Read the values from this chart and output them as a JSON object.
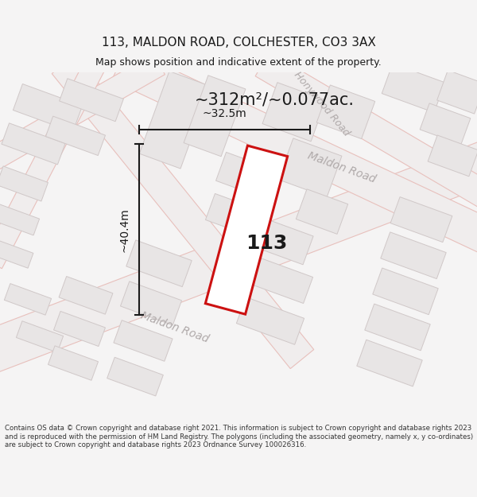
{
  "title": "113, MALDON ROAD, COLCHESTER, CO3 3AX",
  "subtitle": "Map shows position and indicative extent of the property.",
  "area_text": "~312m²/~0.077ac.",
  "width_text": "~32.5m",
  "height_text": "~40.4m",
  "number_text": "113",
  "footer_text": "Contains OS data © Crown copyright and database right 2021. This information is subject to Crown copyright and database rights 2023 and is reproduced with the permission of HM Land Registry. The polygons (including the associated geometry, namely x, y co-ordinates) are subject to Crown copyright and database rights 2023 Ordnance Survey 100026316.",
  "bg_color": "#f5f4f4",
  "map_bg_color": "#f7f6f6",
  "road_fill_color": "#f0eded",
  "road_outline_color": "#e8c0bc",
  "building_fill": "#e8e5e5",
  "building_edge": "#d0c8c8",
  "plot_color": "#cc1111",
  "plot_fill": "#ffffff",
  "road_label_color": "#b0aaaa",
  "dim_color": "#1a1a1a",
  "title_color": "#1a1a1a",
  "footer_color": "#333333",
  "figsize": [
    6.0,
    6.25
  ],
  "dpi": 100
}
